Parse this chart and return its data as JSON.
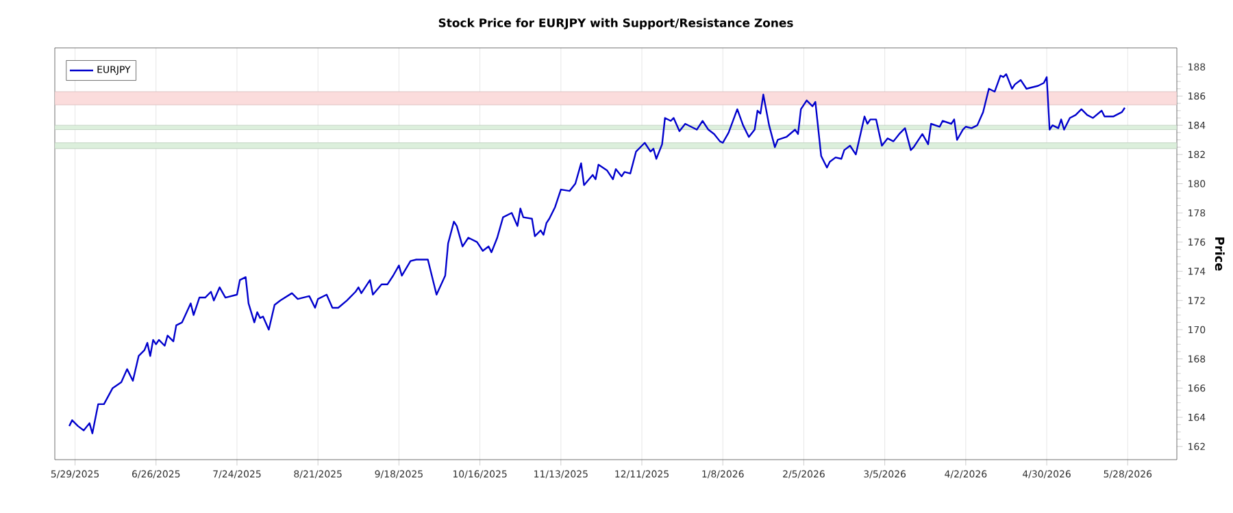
{
  "chart_data": {
    "type": "line",
    "title": "Stock Price for EURJPY with Support/Resistance Zones",
    "ylabel": "Price",
    "x": [
      "2025-05-27",
      "2025-05-28",
      "2025-05-30",
      "2025-06-01",
      "2025-06-03",
      "2025-06-04",
      "2025-06-06",
      "2025-06-08",
      "2025-06-11",
      "2025-06-14",
      "2025-06-16",
      "2025-06-18",
      "2025-06-20",
      "2025-06-22",
      "2025-06-23",
      "2025-06-24",
      "2025-06-25",
      "2025-06-26",
      "2025-06-27",
      "2025-06-29",
      "2025-06-30",
      "2025-07-02",
      "2025-07-03",
      "2025-07-05",
      "2025-07-08",
      "2025-07-09",
      "2025-07-11",
      "2025-07-13",
      "2025-07-15",
      "2025-07-16",
      "2025-07-18",
      "2025-07-20",
      "2025-07-24",
      "2025-07-25",
      "2025-07-27",
      "2025-07-28",
      "2025-07-30",
      "2025-07-31",
      "2025-08-01",
      "2025-08-02",
      "2025-08-04",
      "2025-08-06",
      "2025-08-08",
      "2025-08-12",
      "2025-08-14",
      "2025-08-18",
      "2025-08-20",
      "2025-08-21",
      "2025-08-24",
      "2025-08-26",
      "2025-08-28",
      "2025-08-31",
      "2025-09-03",
      "2025-09-04",
      "2025-09-05",
      "2025-09-08",
      "2025-09-09",
      "2025-09-12",
      "2025-09-14",
      "2025-09-16",
      "2025-09-18",
      "2025-09-19",
      "2025-09-22",
      "2025-09-24",
      "2025-09-28",
      "2025-10-01",
      "2025-10-04",
      "2025-10-05",
      "2025-10-07",
      "2025-10-08",
      "2025-10-10",
      "2025-10-12",
      "2025-10-15",
      "2025-10-17",
      "2025-10-19",
      "2025-10-20",
      "2025-10-22",
      "2025-10-24",
      "2025-10-27",
      "2025-10-29",
      "2025-10-30",
      "2025-10-31",
      "2025-11-03",
      "2025-11-04",
      "2025-11-06",
      "2025-11-07",
      "2025-11-08",
      "2025-11-09",
      "2025-11-11",
      "2025-11-13",
      "2025-11-16",
      "2025-11-18",
      "2025-11-20",
      "2025-11-21",
      "2025-11-24",
      "2025-11-25",
      "2025-11-26",
      "2025-11-29",
      "2025-12-01",
      "2025-12-02",
      "2025-12-04",
      "2025-12-05",
      "2025-12-07",
      "2025-12-09",
      "2025-12-12",
      "2025-12-14",
      "2025-12-15",
      "2025-12-16",
      "2025-12-18",
      "2025-12-19",
      "2025-12-21",
      "2025-12-22",
      "2025-12-24",
      "2025-12-26",
      "2025-12-28",
      "2025-12-30",
      "2026-01-01",
      "2026-01-03",
      "2026-01-05",
      "2026-01-07",
      "2026-01-08",
      "2026-01-10",
      "2026-01-13",
      "2026-01-15",
      "2026-01-17",
      "2026-01-19",
      "2026-01-20",
      "2026-01-21",
      "2026-01-22",
      "2026-01-24",
      "2026-01-26",
      "2026-01-27",
      "2026-01-30",
      "2026-02-02",
      "2026-02-03",
      "2026-02-04",
      "2026-02-06",
      "2026-02-08",
      "2026-02-09",
      "2026-02-11",
      "2026-02-13",
      "2026-02-14",
      "2026-02-16",
      "2026-02-18",
      "2026-02-19",
      "2026-02-21",
      "2026-02-23",
      "2026-02-26",
      "2026-02-27",
      "2026-02-28",
      "2026-03-02",
      "2026-03-04",
      "2026-03-06",
      "2026-03-08",
      "2026-03-10",
      "2026-03-12",
      "2026-03-14",
      "2026-03-15",
      "2026-03-18",
      "2026-03-20",
      "2026-03-21",
      "2026-03-24",
      "2026-03-25",
      "2026-03-28",
      "2026-03-29",
      "2026-03-30",
      "2026-04-01",
      "2026-04-02",
      "2026-04-04",
      "2026-04-06",
      "2026-04-08",
      "2026-04-10",
      "2026-04-12",
      "2026-04-14",
      "2026-04-15",
      "2026-04-16",
      "2026-04-18",
      "2026-04-19",
      "2026-04-21",
      "2026-04-23",
      "2026-04-27",
      "2026-04-29",
      "2026-04-30",
      "2026-05-01",
      "2026-05-02",
      "2026-05-04",
      "2026-05-05",
      "2026-05-06",
      "2026-05-08",
      "2026-05-10",
      "2026-05-12",
      "2026-05-14",
      "2026-05-16",
      "2026-05-19",
      "2026-05-20",
      "2026-05-23",
      "2026-05-26",
      "2026-05-27"
    ],
    "series": [
      {
        "name": "EURJPY",
        "color": "#0000cc",
        "values": [
          163.4,
          163.8,
          163.4,
          163.1,
          163.6,
          162.9,
          164.9,
          164.9,
          166.0,
          166.4,
          167.3,
          166.5,
          168.2,
          168.6,
          169.1,
          168.2,
          169.3,
          169.0,
          169.3,
          168.9,
          169.6,
          169.2,
          170.3,
          170.5,
          171.8,
          171.0,
          172.2,
          172.2,
          172.6,
          172.0,
          172.9,
          172.2,
          172.4,
          173.4,
          173.6,
          171.8,
          170.5,
          171.2,
          170.8,
          170.9,
          170.0,
          171.7,
          172.0,
          172.5,
          172.1,
          172.3,
          171.5,
          172.1,
          172.4,
          171.5,
          171.5,
          172.0,
          172.6,
          172.9,
          172.5,
          173.4,
          172.4,
          173.1,
          173.1,
          173.7,
          174.4,
          173.7,
          174.7,
          174.8,
          174.8,
          172.4,
          173.7,
          175.9,
          177.4,
          177.1,
          175.7,
          176.3,
          176.0,
          175.4,
          175.7,
          175.3,
          176.3,
          177.7,
          178.0,
          177.1,
          178.3,
          177.7,
          177.6,
          176.4,
          176.8,
          176.5,
          177.3,
          177.6,
          178.4,
          179.6,
          179.5,
          180.0,
          181.4,
          179.9,
          180.6,
          180.3,
          181.3,
          180.9,
          180.3,
          181.0,
          180.5,
          180.8,
          180.7,
          182.2,
          182.8,
          182.2,
          182.4,
          181.7,
          182.7,
          184.5,
          184.3,
          184.5,
          183.6,
          184.1,
          183.9,
          183.7,
          184.3,
          183.7,
          183.4,
          182.9,
          182.8,
          183.5,
          185.1,
          184.0,
          183.2,
          183.7,
          185.0,
          184.8,
          186.1,
          184.0,
          182.5,
          183.0,
          183.2,
          183.7,
          183.4,
          185.1,
          185.7,
          185.3,
          185.6,
          181.9,
          181.1,
          181.5,
          181.8,
          181.7,
          182.3,
          182.6,
          182.0,
          184.6,
          184.1,
          184.4,
          184.4,
          182.6,
          183.1,
          182.9,
          183.4,
          183.8,
          182.3,
          182.5,
          183.4,
          182.7,
          184.1,
          183.9,
          184.3,
          184.1,
          184.4,
          183.0,
          183.7,
          183.9,
          183.8,
          184.0,
          184.9,
          186.5,
          186.3,
          187.4,
          187.3,
          187.5,
          186.5,
          186.8,
          187.1,
          186.5,
          186.7,
          186.9,
          187.3,
          183.7,
          184.0,
          183.8,
          184.4,
          183.7,
          184.5,
          184.7,
          185.1,
          184.7,
          184.5,
          185.0,
          184.6,
          184.6,
          184.9,
          185.2
        ]
      }
    ],
    "xlim": [
      "2025-05-22",
      "2026-06-14"
    ],
    "xticks": [
      {
        "value": "2025-05-29",
        "label": "5/29/2025"
      },
      {
        "value": "2025-06-26",
        "label": "6/26/2025"
      },
      {
        "value": "2025-07-24",
        "label": "7/24/2025"
      },
      {
        "value": "2025-08-21",
        "label": "8/21/2025"
      },
      {
        "value": "2025-09-18",
        "label": "9/18/2025"
      },
      {
        "value": "2025-10-16",
        "label": "10/16/2025"
      },
      {
        "value": "2025-11-13",
        "label": "11/13/2025"
      },
      {
        "value": "2025-12-11",
        "label": "12/11/2025"
      },
      {
        "value": "2026-01-08",
        "label": "1/8/2026"
      },
      {
        "value": "2026-02-05",
        "label": "2/5/2026"
      },
      {
        "value": "2026-03-05",
        "label": "3/5/2026"
      },
      {
        "value": "2026-04-02",
        "label": "4/2/2026"
      },
      {
        "value": "2026-04-30",
        "label": "4/30/2026"
      },
      {
        "value": "2026-05-28",
        "label": "5/28/2026"
      }
    ],
    "ylim": [
      161.1,
      189.3
    ],
    "yticks": [
      162,
      164,
      166,
      168,
      170,
      172,
      174,
      176,
      178,
      180,
      182,
      184,
      186,
      188
    ],
    "bands": [
      {
        "axis": "y",
        "from": 185.4,
        "to": 186.3,
        "color": "#fbdcdc"
      },
      {
        "axis": "y",
        "from": 183.7,
        "to": 184.0,
        "color": "#dcefdc"
      },
      {
        "axis": "y",
        "from": 182.4,
        "to": 182.8,
        "color": "#dcefdc"
      }
    ],
    "grid": "x",
    "legend": "top left",
    "marker": "none",
    "line_style": "solid"
  }
}
